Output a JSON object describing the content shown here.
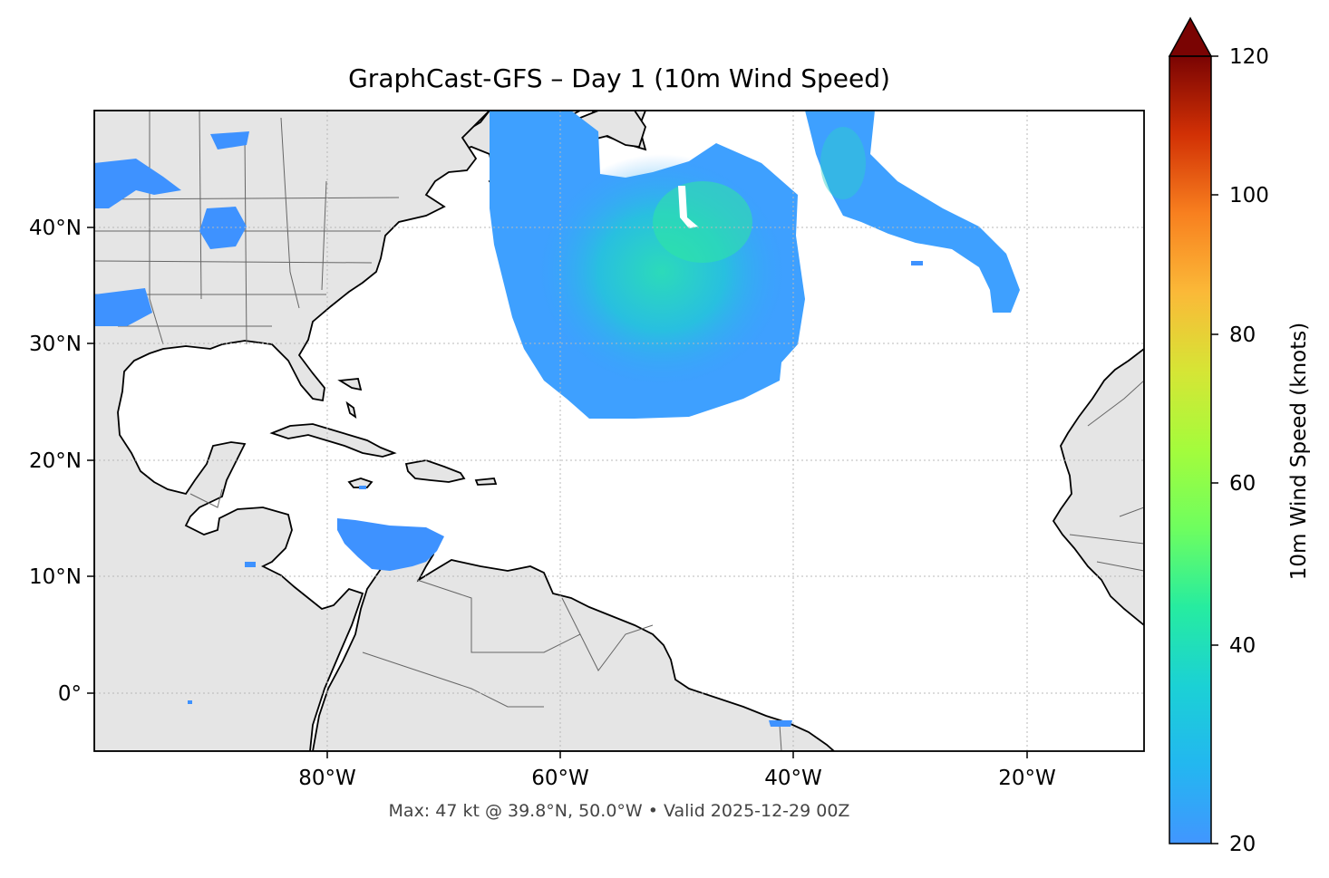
{
  "title": "GraphCast-GFS – Day 1 (10m Wind Speed)",
  "footer": "Max: 47 kt @ 39.8°N, 50.0°W • Valid 2025-12-29 00Z",
  "map": {
    "projection": "PlateCarree",
    "lon_range": [
      -100,
      -10
    ],
    "lat_range": [
      -5,
      50
    ],
    "land_color": "#e5e5e5",
    "ocean_color": "#ffffff",
    "gridlines": "dotted",
    "lon_ticks": [
      {
        "value": -80,
        "label": "80°W"
      },
      {
        "value": -60,
        "label": "60°W"
      },
      {
        "value": -40,
        "label": "40°W"
      },
      {
        "value": -20,
        "label": "20°W"
      }
    ],
    "lat_ticks": [
      {
        "value": 40,
        "label": "40°N"
      },
      {
        "value": 30,
        "label": "30°N"
      },
      {
        "value": 20,
        "label": "20°N"
      },
      {
        "value": 10,
        "label": "10°N"
      },
      {
        "value": 0,
        "label": "0°"
      }
    ]
  },
  "colorbar": {
    "label": "10m Wind Speed (knots)",
    "min": 20,
    "max": 120,
    "extend": "max",
    "cmap": "turbo",
    "ticks": [
      {
        "value": 120,
        "label": "120"
      },
      {
        "value": 100,
        "label": "100"
      },
      {
        "value": 80,
        "label": "80"
      },
      {
        "value": 60,
        "label": "60"
      },
      {
        "value": 40,
        "label": "40"
      },
      {
        "value": 20,
        "label": "20"
      }
    ]
  },
  "wind_max": {
    "value_kt": 47,
    "lat": 39.8,
    "lon": -50.0
  }
}
